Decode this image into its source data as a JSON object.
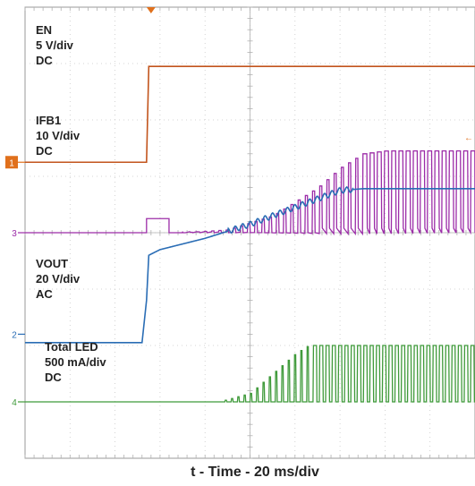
{
  "chart_data": {
    "type": "line",
    "title": "",
    "xlabel": "t - Time - 20 ms/div",
    "ylabel": "",
    "grid": true,
    "divisions": {
      "x": 10,
      "y": 8
    },
    "x_unit": "ms",
    "x_per_div": 20,
    "trigger_position_div": 2.8,
    "series": [
      {
        "name": "EN",
        "channel": "1",
        "label_lines": [
          "EN",
          "5 V/div",
          "DC"
        ],
        "color": "#c2541c",
        "scale": "5 V/div",
        "coupling": "DC",
        "ground_div": 5.25,
        "points": [
          [
            0,
            5.25
          ],
          [
            2.7,
            5.25
          ],
          [
            2.75,
            6.95
          ],
          [
            10,
            6.95
          ]
        ]
      },
      {
        "name": "IFB1",
        "channel": "3",
        "label_lines": [
          "IFB1",
          "10 V/div",
          "DC"
        ],
        "color": "#9c2ca8",
        "scale": "10 V/div",
        "coupling": "DC",
        "ground_div": 4.0,
        "envelope": [
          [
            3.5,
            4.0
          ],
          [
            4.5,
            4.05
          ],
          [
            5.5,
            4.3
          ],
          [
            6.5,
            4.8
          ],
          [
            7.0,
            5.15
          ],
          [
            7.5,
            5.4
          ],
          [
            8.0,
            5.45
          ],
          [
            10,
            5.45
          ]
        ],
        "burst_start_div": 2.7,
        "burst_end_div": 3.2
      },
      {
        "name": "VOUT",
        "channel": "",
        "label_lines": [
          "VOUT",
          "20 V/div",
          "AC"
        ],
        "color": "#2a6db5",
        "scale": "20 V/div",
        "coupling": "AC",
        "points": [
          [
            0,
            2.05
          ],
          [
            2.6,
            2.05
          ],
          [
            2.7,
            2.8
          ],
          [
            2.75,
            3.6
          ],
          [
            3.0,
            3.7
          ],
          [
            4.0,
            3.9
          ],
          [
            5.0,
            4.15
          ],
          [
            6.0,
            4.45
          ],
          [
            6.5,
            4.6
          ],
          [
            7.0,
            4.75
          ],
          [
            7.5,
            4.78
          ],
          [
            10,
            4.78
          ]
        ]
      },
      {
        "name": "Total LED",
        "channel": "4",
        "label_lines": [
          "Total LED",
          "500 mA/div",
          "DC"
        ],
        "color": "#3f9a3a",
        "scale": "500 mA/div",
        "coupling": "DC",
        "ground_div": 1.0,
        "envelope": [
          [
            4.3,
            1.0
          ],
          [
            5.0,
            1.15
          ],
          [
            5.5,
            1.5
          ],
          [
            6.0,
            1.85
          ],
          [
            6.3,
            2.0
          ],
          [
            10,
            2.0
          ]
        ]
      }
    ]
  },
  "markers": {
    "trigger_top": "▼",
    "ch1": "1",
    "ch3": "3",
    "ch2": "2",
    "ch4": "4",
    "trigger_level": "←"
  }
}
